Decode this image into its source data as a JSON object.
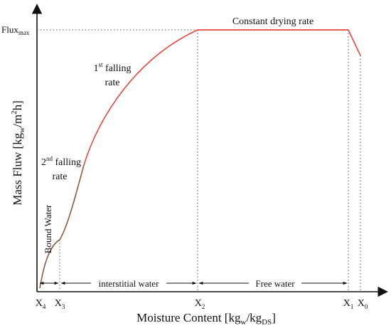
{
  "diagram": {
    "y_axis_label": "Mass Fluw [kg",
    "y_axis_label_sub": "w",
    "y_axis_label_mid": "/m",
    "y_axis_label_sup": "2",
    "y_axis_label_end": "h]",
    "x_axis_label": "Moisture Content [kg",
    "x_axis_label_sub1": "w",
    "x_axis_label_mid": "/kg",
    "x_axis_label_sub2": "DS",
    "x_axis_label_end": "]",
    "flux_label": "Flux",
    "flux_label_sub": "max",
    "constant_rate_label": "Constant drying rate",
    "first_falling_line1_pre": "1",
    "first_falling_line1_sup": "st",
    "first_falling_line1_post": " falling",
    "first_falling_line2": "rate",
    "second_falling_line1_pre": "2",
    "second_falling_line1_sup": "nd",
    "second_falling_line1_post": " falling",
    "second_falling_line2": "rate",
    "bound_water_label": "Bound Water",
    "interstitial_label": "interstitial water",
    "free_water_label": "Free water",
    "ticks": [
      {
        "base": "X",
        "sub": "4"
      },
      {
        "base": "X",
        "sub": "3"
      },
      {
        "base": "X",
        "sub": "2"
      },
      {
        "base": "X",
        "sub": "1"
      },
      {
        "base": "X",
        "sub": "0"
      }
    ],
    "colors": {
      "axis": "#111111",
      "constant_rate_curve": "#e8473f",
      "falling_rate_curve": "#e8473f",
      "bound_water_curve": "#8b5a3c",
      "guide_lines": "#555555"
    }
  }
}
